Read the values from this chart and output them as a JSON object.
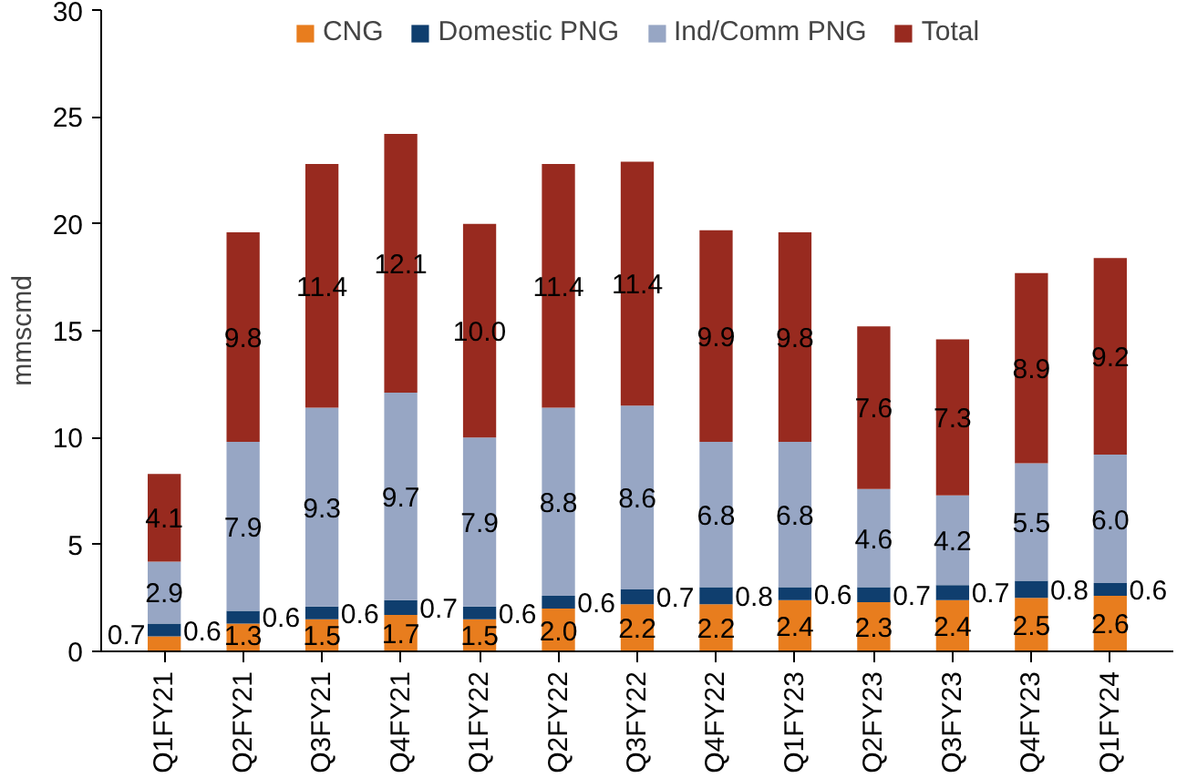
{
  "chart_data": {
    "type": "bar",
    "stacked": true,
    "ylabel": "mmscmd",
    "ylim": [
      0,
      30
    ],
    "yticks": [
      0,
      5,
      10,
      15,
      20,
      25,
      30
    ],
    "grid": false,
    "legend": "top",
    "categories": [
      "Q1FY21",
      "Q2FY21",
      "Q3FY21",
      "Q4FY21",
      "Q1FY22",
      "Q2FY22",
      "Q3FY22",
      "Q4FY22",
      "Q1FY23",
      "Q2FY23",
      "Q3FY23",
      "Q4FY23",
      "Q1FY24"
    ],
    "series": [
      {
        "name": "CNG",
        "color": "#e87d1e",
        "values": [
          0.7,
          1.3,
          1.5,
          1.7,
          1.5,
          2.0,
          2.2,
          2.2,
          2.4,
          2.3,
          2.4,
          2.5,
          2.6
        ],
        "value_labels": [
          "0.7",
          "1.3",
          "1.5",
          "1.7",
          "1.5",
          "2.0",
          "2.2",
          "2.2",
          "2.4",
          "2.3",
          "2.4",
          "2.5",
          "2.6"
        ]
      },
      {
        "name": "Domestic PNG",
        "color": "#0f3e6e",
        "values": [
          0.6,
          0.6,
          0.6,
          0.7,
          0.6,
          0.6,
          0.7,
          0.8,
          0.6,
          0.7,
          0.7,
          0.8,
          0.6
        ],
        "value_labels": [
          "0.6",
          "0.6",
          "0.6",
          "0.7",
          "0.6",
          "0.6",
          "0.7",
          "0.8",
          "0.6",
          "0.7",
          "0.7",
          "0.8",
          "0.6"
        ]
      },
      {
        "name": "Ind/Comm PNG",
        "color": "#97a6c4",
        "values": [
          2.9,
          7.9,
          9.3,
          9.7,
          7.9,
          8.8,
          8.6,
          6.8,
          6.8,
          4.6,
          4.2,
          5.5,
          6.0
        ],
        "value_labels": [
          "2.9",
          "7.9",
          "9.3",
          "9.7",
          "7.9",
          "8.8",
          "8.6",
          "6.8",
          "6.8",
          "4.6",
          "4.2",
          "5.5",
          "6.0"
        ]
      },
      {
        "name": "Total",
        "color": "#982a1f",
        "values": [
          4.1,
          9.8,
          11.4,
          12.1,
          10.0,
          11.4,
          11.4,
          9.9,
          9.8,
          7.6,
          7.3,
          8.9,
          9.2
        ],
        "value_labels": [
          "4.1",
          "9.8",
          "11.4",
          "12.1",
          "10.0",
          "11.4",
          "11.4",
          "9.9",
          "9.8",
          "7.6",
          "7.3",
          "8.9",
          "9.2"
        ]
      }
    ]
  }
}
